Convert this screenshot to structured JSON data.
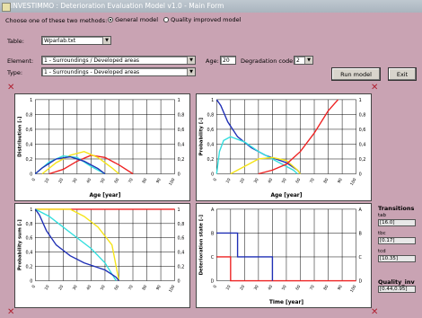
{
  "window": {
    "title": "INVESTIMMO : Deterioration Evaluation Model v1.0  -  Main Form"
  },
  "methods": {
    "prompt": "Choose one of these two methods:",
    "general": "General model",
    "quality": "Quality improved model",
    "selected": "general"
  },
  "table": {
    "label": "Table:",
    "value": "Wparlab.txt"
  },
  "element": {
    "label": "Element:",
    "value": "1 - Surroundings / Developed areas"
  },
  "type": {
    "label": "Type:",
    "value": "1 - Surroundings - Developed areas"
  },
  "age": {
    "label": "Age:",
    "value": "20"
  },
  "degradation": {
    "label": "Degradation code:",
    "value": "2"
  },
  "buttons": {
    "run": "Run model",
    "exit": "Exit"
  },
  "transitions": {
    "title": "Transitions",
    "items": [
      {
        "label": "tab",
        "value": "[16.0]"
      },
      {
        "label": "tbc",
        "value": "[0.17]"
      },
      {
        "label": "tcd",
        "value": "[10.35]"
      }
    ],
    "quality_label": "Quality_inv",
    "quality_value": "[0.44,0.95]"
  },
  "colors": {
    "red": "#ee2222",
    "yellow": "#f5e418",
    "cyan": "#33dede",
    "blue": "#1f2fb5"
  },
  "chart_data": [
    {
      "type": "line",
      "ylabel": "Distribution [-]",
      "xlabel": "Age [year]",
      "xticks": [
        "0",
        "10",
        "20",
        "30",
        "40",
        "50",
        "60",
        "70",
        "80",
        "90",
        "100"
      ],
      "yticks": [
        "0",
        "0,2",
        "0,4",
        "0,6",
        "0,8",
        "1"
      ],
      "ylim": [
        0,
        1
      ],
      "xlim": [
        0,
        100
      ],
      "series": [
        {
          "color": "red",
          "x": [
            10,
            20,
            30,
            40,
            50,
            60,
            70
          ],
          "y": [
            0,
            0.06,
            0.17,
            0.25,
            0.22,
            0.12,
            0
          ]
        },
        {
          "color": "yellow",
          "x": [
            5,
            15,
            25,
            35,
            45,
            55,
            60
          ],
          "y": [
            0,
            0.15,
            0.25,
            0.3,
            0.22,
            0.08,
            0
          ]
        },
        {
          "color": "cyan",
          "x": [
            0,
            10,
            20,
            30,
            40,
            50
          ],
          "y": [
            0,
            0.16,
            0.24,
            0.22,
            0.1,
            0
          ]
        },
        {
          "color": "blue",
          "x": [
            0,
            5,
            15,
            25,
            35,
            45,
            50
          ],
          "y": [
            0,
            0.08,
            0.2,
            0.23,
            0.17,
            0.07,
            0
          ]
        }
      ]
    },
    {
      "type": "line",
      "ylabel": "Probability [-]",
      "xlabel": "Age [year]",
      "xticks": [
        "0",
        "10",
        "20",
        "30",
        "40",
        "50",
        "60",
        "70",
        "80",
        "90",
        "100"
      ],
      "yticks": [
        "0",
        "0,2",
        "0,4",
        "0,6",
        "0,8",
        "1"
      ],
      "ylim": [
        0,
        1
      ],
      "xlim": [
        0,
        100
      ],
      "series": [
        {
          "color": "blue",
          "x": [
            0,
            3,
            8,
            15,
            25,
            35,
            50,
            58,
            60
          ],
          "y": [
            1,
            0.92,
            0.7,
            0.5,
            0.35,
            0.25,
            0.15,
            0.05,
            0
          ]
        },
        {
          "color": "cyan",
          "x": [
            0,
            2,
            5,
            10,
            20,
            30,
            45,
            55,
            58
          ],
          "y": [
            0,
            0.3,
            0.45,
            0.5,
            0.43,
            0.3,
            0.15,
            0.05,
            0
          ]
        },
        {
          "color": "yellow",
          "x": [
            10,
            20,
            30,
            40,
            50,
            58,
            60
          ],
          "y": [
            0,
            0.1,
            0.2,
            0.22,
            0.18,
            0.05,
            0
          ]
        },
        {
          "color": "red",
          "x": [
            30,
            40,
            50,
            60,
            70,
            80,
            87
          ],
          "y": [
            0,
            0.05,
            0.13,
            0.3,
            0.55,
            0.85,
            1
          ]
        }
      ]
    },
    {
      "type": "line",
      "ylabel": "Probability sum [-]",
      "xlabel": "",
      "xticks": [
        "0",
        "10",
        "20",
        "30",
        "40",
        "50",
        "60",
        "70",
        "80",
        "90",
        "100"
      ],
      "yticks": [
        "0",
        "0,2",
        "0,4",
        "0,6",
        "0,8",
        "1"
      ],
      "ylim": [
        0,
        1
      ],
      "xlim": [
        0,
        100
      ],
      "series": [
        {
          "color": "red",
          "x": [
            0,
            100
          ],
          "y": [
            1,
            1
          ]
        },
        {
          "color": "yellow",
          "x": [
            0,
            25,
            35,
            45,
            55,
            60
          ],
          "y": [
            1,
            1,
            0.9,
            0.75,
            0.5,
            0
          ]
        },
        {
          "color": "cyan",
          "x": [
            0,
            10,
            20,
            30,
            40,
            50,
            58
          ],
          "y": [
            1,
            0.9,
            0.75,
            0.6,
            0.45,
            0.25,
            0
          ]
        },
        {
          "color": "blue",
          "x": [
            0,
            3,
            8,
            15,
            25,
            35,
            50,
            58,
            60
          ],
          "y": [
            1,
            0.92,
            0.7,
            0.5,
            0.35,
            0.25,
            0.15,
            0.05,
            0
          ]
        }
      ]
    },
    {
      "type": "line",
      "ylabel": "Deterioration state [-]",
      "xlabel": "Time [year]",
      "xticks": [
        "0",
        "10",
        "20",
        "30",
        "40",
        "50",
        "60",
        "70",
        "80",
        "90",
        "100"
      ],
      "yticks": [
        "D",
        "C",
        "B",
        "A"
      ],
      "ylim": [
        0,
        3
      ],
      "xlim": [
        0,
        100
      ],
      "series": [
        {
          "color": "red",
          "x": [
            0,
            10,
            10,
            100
          ],
          "y": [
            1,
            1,
            0,
            0
          ]
        },
        {
          "color": "blue",
          "x": [
            0,
            15,
            15,
            40,
            40
          ],
          "y": [
            2,
            2,
            1,
            1,
            0
          ]
        }
      ]
    }
  ]
}
